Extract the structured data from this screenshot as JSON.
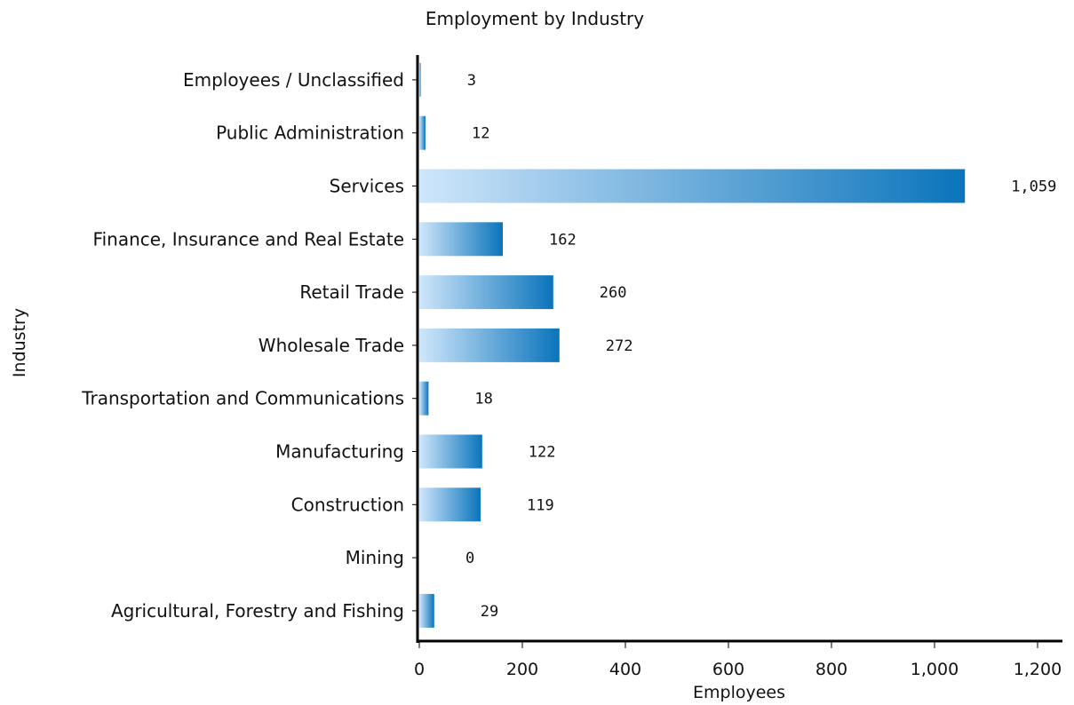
{
  "chart_data": {
    "type": "bar",
    "orientation": "horizontal",
    "title": "Employment by Industry",
    "xlabel": "Employees",
    "ylabel": "Industry",
    "categories": [
      "Employees / Unclassified",
      "Public Administration",
      "Services",
      "Finance, Insurance and Real Estate",
      "Retail Trade",
      "Wholesale Trade",
      "Transportation and Communications",
      "Manufacturing",
      "Construction",
      "Mining",
      "Agricultural, Forestry and Fishing"
    ],
    "values": [
      3,
      12,
      1059,
      162,
      260,
      272,
      18,
      122,
      119,
      0,
      29
    ],
    "value_labels": [
      "3",
      "12",
      "1,059",
      "162",
      "260",
      "272",
      "18",
      "122",
      "119",
      "0",
      "29"
    ],
    "xlim": [
      0,
      1200
    ],
    "xticks": [
      0,
      200,
      400,
      600,
      800,
      1000,
      1200
    ],
    "xtick_labels": [
      "0",
      "200",
      "400",
      "600",
      "800",
      "1,000",
      "1,200"
    ],
    "grid": false,
    "legend": "none",
    "colors": {
      "bar_light": "#cfe6fb",
      "bar_dark": "#0a74bb",
      "axis": "#000000"
    }
  }
}
